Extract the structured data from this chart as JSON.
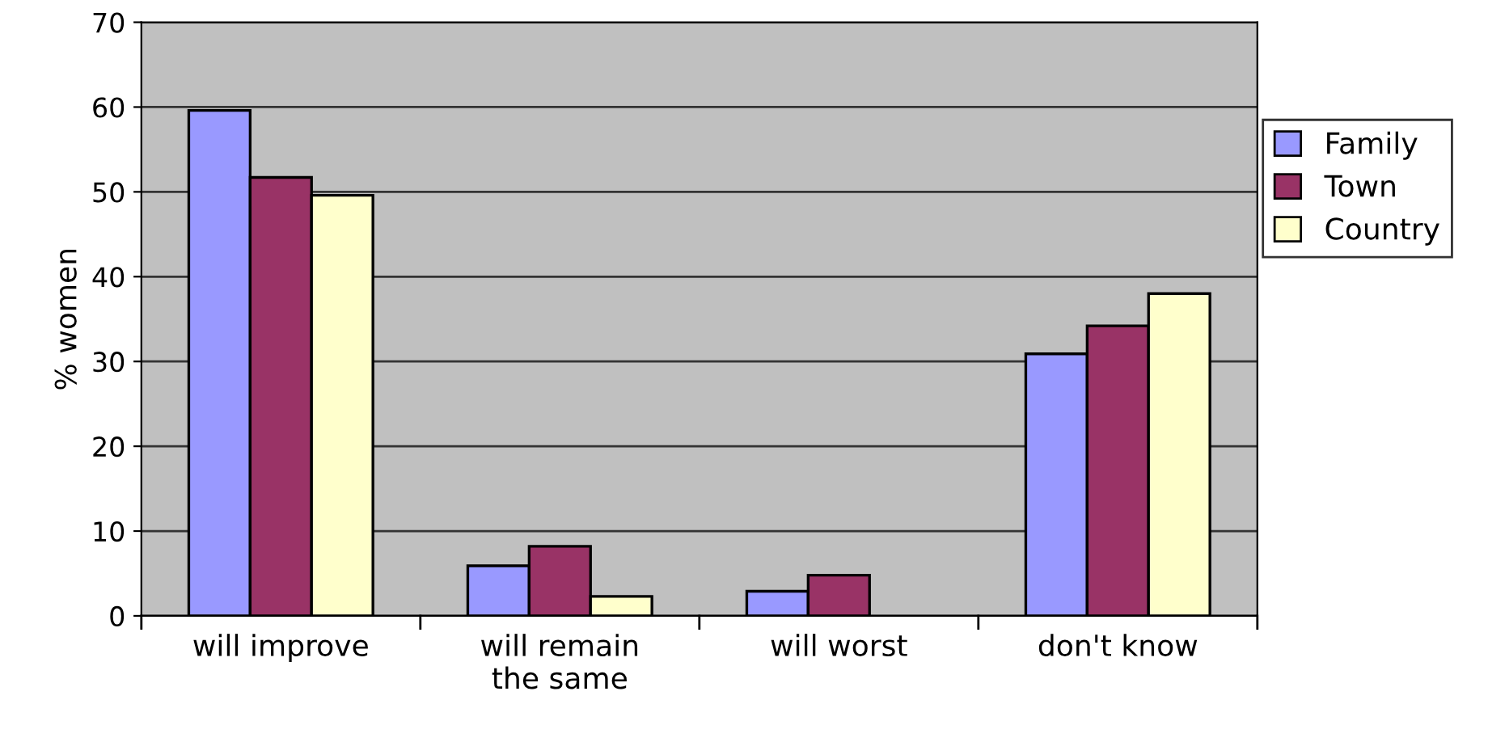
{
  "chart_data": {
    "type": "bar",
    "ylabel": "% women",
    "categories": [
      "will improve",
      "will remain\nthe same",
      "will worst",
      "don't know"
    ],
    "series": [
      {
        "name": "Family",
        "color": "#9999ff",
        "values": [
          59.6,
          5.9,
          2.9,
          30.9
        ]
      },
      {
        "name": "Town",
        "color": "#993366",
        "values": [
          51.7,
          8.2,
          4.8,
          34.2
        ]
      },
      {
        "name": "Country",
        "color": "#ffffcc",
        "values": [
          49.6,
          2.3,
          null,
          38.0
        ]
      }
    ],
    "ylim": [
      0,
      70
    ],
    "yticks": [
      0,
      10,
      20,
      30,
      40,
      50,
      60,
      70
    ],
    "grid": "y",
    "legend": "right"
  }
}
